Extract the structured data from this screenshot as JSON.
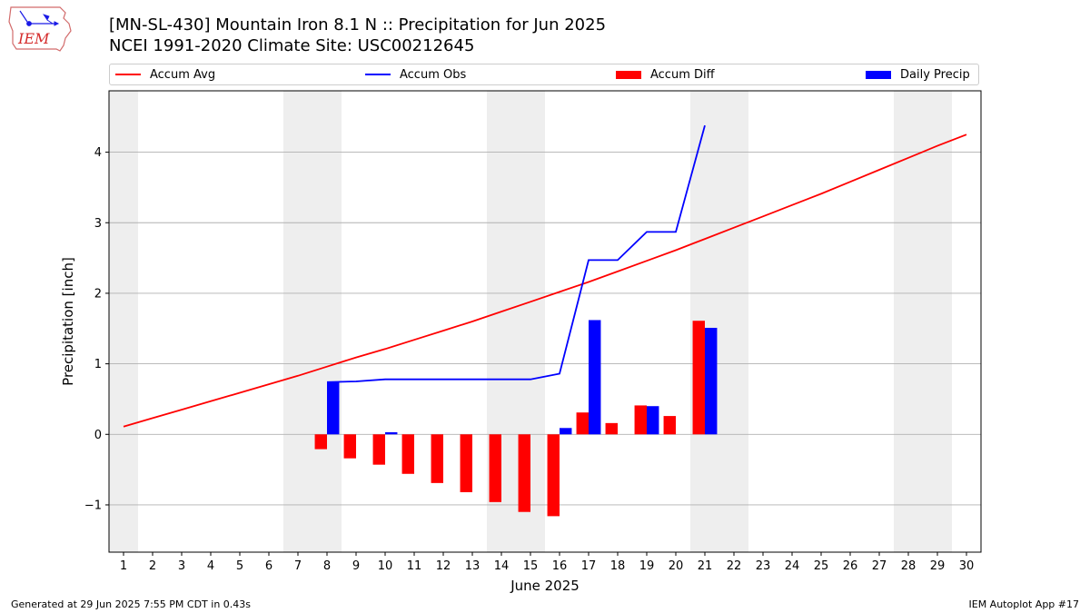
{
  "header": {
    "title_line1": "[MN-SL-430] Mountain Iron 8.1 N :: Precipitation for Jun 2025",
    "title_line2": "NCEI 1991-2020 Climate Site: USC00212645",
    "logo_text": "IEM"
  },
  "legend": {
    "accum_avg": "Accum Avg",
    "accum_obs": "Accum Obs",
    "accum_diff": "Accum Diff",
    "daily_precip": "Daily Precip"
  },
  "footer": {
    "left": "Generated at 29 Jun 2025 7:55 PM CDT in 0.43s",
    "right": "IEM Autoplot App #17"
  },
  "colors": {
    "accum_avg": "#ff0000",
    "accum_obs": "#0000ff",
    "accum_diff": "#ff0000",
    "daily_precip": "#0000ff",
    "weekend_shade": "#eeeeee",
    "grid": "#b0b0b0"
  },
  "chart_data": {
    "type": "bar",
    "xlabel": "June 2025",
    "ylabel": "Precipitation [inch]",
    "ylim": [
      -1.67,
      4.87
    ],
    "yticks": [
      -1,
      0,
      1,
      2,
      3,
      4
    ],
    "ytick_labels": [
      "−1",
      "0",
      "1",
      "2",
      "3",
      "4"
    ],
    "grid": "horizontal",
    "legend_position": "top",
    "x": [
      1,
      2,
      3,
      4,
      5,
      6,
      7,
      8,
      9,
      10,
      11,
      12,
      13,
      14,
      15,
      16,
      17,
      18,
      19,
      20,
      21,
      22,
      23,
      24,
      25,
      26,
      27,
      28,
      29,
      30
    ],
    "xtick_labels": [
      "1",
      "2",
      "3",
      "4",
      "5",
      "6",
      "7",
      "8",
      "9",
      "10",
      "11",
      "12",
      "13",
      "14",
      "15",
      "16",
      "17",
      "18",
      "19",
      "20",
      "21",
      "22",
      "23",
      "24",
      "25",
      "26",
      "27",
      "28",
      "29",
      "30"
    ],
    "weekend_days": [
      1,
      7,
      8,
      14,
      15,
      21,
      22,
      28,
      29
    ],
    "accum_avg": [
      0.11,
      0.23,
      0.35,
      0.47,
      0.59,
      0.71,
      0.83,
      0.96,
      1.09,
      1.21,
      1.34,
      1.47,
      1.6,
      1.74,
      1.88,
      2.02,
      2.16,
      2.31,
      2.46,
      2.61,
      2.77,
      2.93,
      3.09,
      3.25,
      3.41,
      3.58,
      3.75,
      3.92,
      4.09,
      4.25
    ],
    "accum_obs": [
      null,
      null,
      null,
      null,
      null,
      null,
      null,
      0.74,
      0.75,
      0.78,
      0.78,
      0.78,
      0.78,
      0.78,
      0.78,
      0.86,
      2.47,
      2.47,
      2.87,
      2.87,
      4.38,
      null,
      null,
      null,
      null,
      null,
      null,
      null,
      null,
      null
    ],
    "accum_diff": [
      null,
      null,
      null,
      null,
      null,
      null,
      null,
      -0.21,
      -0.34,
      -0.43,
      -0.56,
      -0.69,
      -0.82,
      -0.96,
      -1.1,
      -1.16,
      0.31,
      0.16,
      0.41,
      0.26,
      1.61,
      null,
      null,
      null,
      null,
      null,
      null,
      null,
      null,
      null
    ],
    "daily_precip": [
      null,
      null,
      null,
      null,
      null,
      null,
      null,
      0.74,
      0.0,
      0.03,
      0.0,
      0.0,
      0.0,
      0.0,
      0.0,
      0.09,
      1.62,
      0.0,
      0.4,
      0.0,
      1.51,
      null,
      null,
      null,
      null,
      null,
      null,
      null,
      null,
      null
    ]
  }
}
